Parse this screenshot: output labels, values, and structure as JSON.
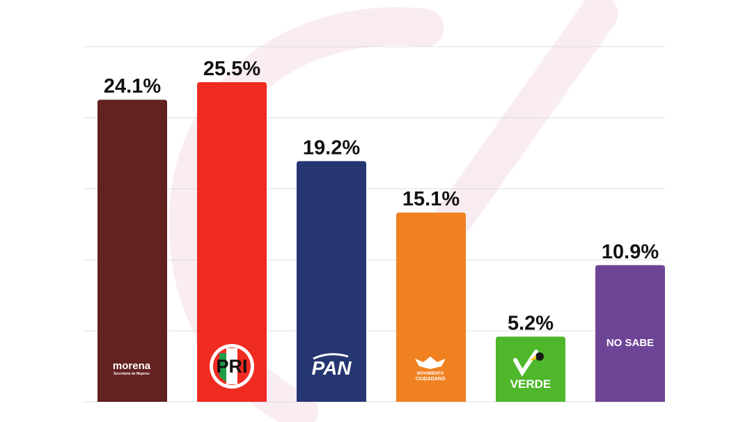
{
  "chart_data": {
    "type": "bar",
    "categories": [
      "morena",
      "PRI",
      "PAN",
      "MOVIMIENTO CIUDADANO",
      "VERDE",
      "NO SABE"
    ],
    "values": [
      24.1,
      25.5,
      19.2,
      15.1,
      5.2,
      10.9
    ],
    "value_labels": [
      "24.1%",
      "25.5%",
      "19.2%",
      "15.1%",
      "5.2%",
      "10.9%"
    ],
    "colors": [
      "#63211f",
      "#f02b22",
      "#253671",
      "#f08121",
      "#4fb72c",
      "#6e4596"
    ],
    "ylim": [
      0,
      29.5
    ],
    "grid": true,
    "logos": {
      "morena": {
        "name": "morena",
        "subtitle": "Secretaría de Mujeres"
      },
      "pri": {
        "name": "PRI"
      },
      "pan": {
        "name": "PAN"
      },
      "mc": {
        "line1": "MOVIMIENTO",
        "line2": "CIUDADANO"
      },
      "verde": {
        "name": "VERDE"
      },
      "nosabe": {
        "name": "NO SABE"
      }
    }
  }
}
